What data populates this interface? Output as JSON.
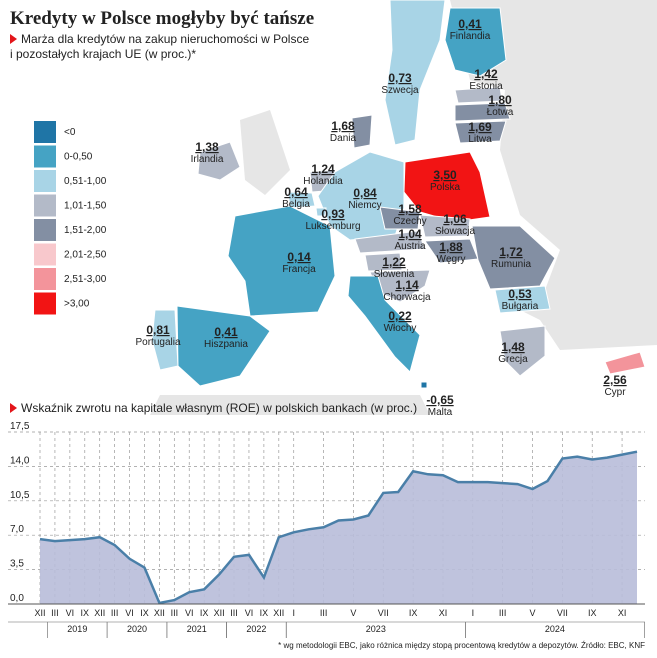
{
  "chart_data": [
    {
      "type": "choropleth",
      "title": "Kredyty w Polsce mogłyby być tańsze",
      "subtitle": [
        "Marża dla kredytów na zakup nieruchomości w Polsce",
        "i pozostałych krajach UE (w proc.)*"
      ],
      "legend": [
        {
          "label": "<0",
          "color": "#1f75a6"
        },
        {
          "label": "0-0,50",
          "color": "#45a3c4"
        },
        {
          "label": "0,51-1,00",
          "color": "#a8d4e6"
        },
        {
          "label": "1,01-1,50",
          "color": "#b3bac8"
        },
        {
          "label": "1,51-2,00",
          "color": "#838fa3"
        },
        {
          "label": "2,01-2,50",
          "color": "#f8c8cc"
        },
        {
          "label": "2,51-3,00",
          "color": "#f3949b"
        },
        {
          "label": ">3,00",
          "color": "#f21414"
        }
      ],
      "regions": [
        {
          "name": "Finlandia",
          "value": 0.41,
          "value_label": "0,41",
          "color": "#45a3c4"
        },
        {
          "name": "Szwecja",
          "value": 0.73,
          "value_label": "0,73",
          "color": "#a8d4e6"
        },
        {
          "name": "Estonia",
          "value": 1.42,
          "value_label": "1,42",
          "color": "#b3bac8"
        },
        {
          "name": "Łotwa",
          "value": 1.8,
          "value_label": "1,80",
          "color": "#838fa3"
        },
        {
          "name": "Litwa",
          "value": 1.69,
          "value_label": "1,69",
          "color": "#838fa3"
        },
        {
          "name": "Dania",
          "value": 1.68,
          "value_label": "1,68",
          "color": "#838fa3"
        },
        {
          "name": "Irlandia",
          "value": 1.38,
          "value_label": "1,38",
          "color": "#b3bac8"
        },
        {
          "name": "Holandia",
          "value": 1.24,
          "value_label": "1,24",
          "color": "#b3bac8"
        },
        {
          "name": "Polska",
          "value": 3.5,
          "value_label": "3,50",
          "color": "#f21414"
        },
        {
          "name": "Belgia",
          "value": 0.64,
          "value_label": "0,64",
          "color": "#a8d4e6"
        },
        {
          "name": "Niemcy",
          "value": 0.84,
          "value_label": "0,84",
          "color": "#a8d4e6"
        },
        {
          "name": "Luksemburg",
          "value": 0.93,
          "value_label": "0,93",
          "color": "#a8d4e6"
        },
        {
          "name": "Czechy",
          "value": 1.58,
          "value_label": "1,58",
          "color": "#838fa3"
        },
        {
          "name": "Słowacja",
          "value": 1.06,
          "value_label": "1,06",
          "color": "#b3bac8"
        },
        {
          "name": "Austria",
          "value": 1.04,
          "value_label": "1,04",
          "color": "#b3bac8"
        },
        {
          "name": "Węgry",
          "value": 1.88,
          "value_label": "1,88",
          "color": "#838fa3"
        },
        {
          "name": "Rumunia",
          "value": 1.72,
          "value_label": "1,72",
          "color": "#838fa3"
        },
        {
          "name": "Francja",
          "value": 0.14,
          "value_label": "0,14",
          "color": "#45a3c4"
        },
        {
          "name": "Słowenia",
          "value": 1.22,
          "value_label": "1,22",
          "color": "#b3bac8"
        },
        {
          "name": "Chorwacja",
          "value": 1.14,
          "value_label": "1,14",
          "color": "#b3bac8"
        },
        {
          "name": "Bułgaria",
          "value": 0.53,
          "value_label": "0,53",
          "color": "#a8d4e6"
        },
        {
          "name": "Portugalia",
          "value": 0.81,
          "value_label": "0,81",
          "color": "#a8d4e6"
        },
        {
          "name": "Hiszpania",
          "value": 0.41,
          "value_label": "0,41",
          "color": "#45a3c4"
        },
        {
          "name": "Włochy",
          "value": 0.22,
          "value_label": "0,22",
          "color": "#45a3c4"
        },
        {
          "name": "Grecja",
          "value": 1.48,
          "value_label": "1,48",
          "color": "#b3bac8"
        },
        {
          "name": "Malta",
          "value": -0.65,
          "value_label": "-0,65",
          "color": "#1f75a6"
        },
        {
          "name": "Cypr",
          "value": 2.56,
          "value_label": "2,56",
          "color": "#f3949b"
        }
      ]
    },
    {
      "type": "area",
      "title": "Wskaźnik zwrotu na kapitale własnym (ROE) w polskich bankach (w proc.)",
      "categories": [
        "XII",
        "III",
        "VI",
        "IX",
        "XII",
        "III",
        "VI",
        "IX",
        "XII",
        "III",
        "VI",
        "IX",
        "XII",
        "III",
        "VI",
        "IX",
        "XII",
        "I",
        null,
        "III",
        null,
        "V",
        null,
        "VII",
        null,
        "IX",
        null,
        "XI",
        null,
        "I",
        null,
        "III",
        null,
        "V",
        null,
        "VII",
        null,
        "IX",
        null,
        "XI",
        null
      ],
      "x_groups": [
        "2019",
        "2020",
        "2021",
        "2022",
        "2023",
        "2024"
      ],
      "values": [
        6.6,
        6.4,
        6.5,
        6.6,
        6.8,
        6.0,
        4.6,
        3.7,
        0.1,
        0.4,
        1.2,
        1.5,
        3.0,
        4.8,
        5.0,
        2.7,
        6.8,
        7.3,
        7.6,
        7.8,
        8.5,
        8.6,
        9.0,
        11.3,
        11.4,
        13.5,
        13.2,
        13.1,
        12.4,
        12.4,
        12.4,
        12.3,
        12.2,
        11.7,
        12.5,
        14.8,
        15.0,
        14.7,
        14.9,
        15.2,
        15.5
      ],
      "color": "#b8bdd9",
      "line_color": "#4a7fa8",
      "ylim": [
        0,
        17.5
      ],
      "yticks": [
        {
          "value": 0,
          "label": "0,0"
        },
        {
          "value": 3.5,
          "label": "3,5"
        },
        {
          "value": 7,
          "label": "7,0"
        },
        {
          "value": 10.5,
          "label": "10,5"
        },
        {
          "value": 14,
          "label": "14,0"
        },
        {
          "value": 17.5,
          "label": "17,5"
        }
      ],
      "grid": true
    }
  ],
  "footnote": "* wg metodologii EBC, jako różnica między stopą procentową kredytów a depozytów. Źródło: EBC, KNF"
}
